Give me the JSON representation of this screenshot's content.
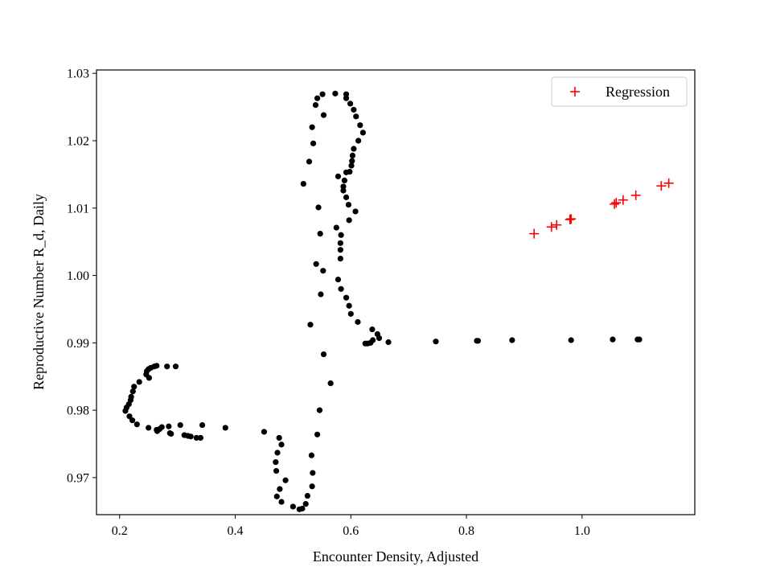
{
  "chart_data": {
    "type": "scatter",
    "xlabel": "Encounter Density, Adjusted",
    "ylabel": "Reproductive Number R_d, Daily",
    "xlim": [
      0.16,
      1.195
    ],
    "ylim": [
      0.9645,
      1.0305
    ],
    "xticks": [
      0.2,
      0.4,
      0.6,
      0.8,
      1.0
    ],
    "xtick_labels": [
      "0.2",
      "0.4",
      "0.6",
      "0.8",
      "1.0"
    ],
    "yticks": [
      0.97,
      0.98,
      0.99,
      1.0,
      1.01,
      1.02,
      1.03
    ],
    "ytick_labels": [
      "0.97",
      "0.98",
      "0.99",
      "1.00",
      "1.01",
      "1.02",
      "1.03"
    ],
    "grid": false,
    "legend": {
      "placement": "top-right",
      "entries": [
        "Regression"
      ]
    },
    "series": [
      {
        "marker": "dot",
        "color": "#000000",
        "points": [
          [
            0.516,
            0.9654
          ],
          [
            0.511,
            0.9653
          ],
          [
            0.5,
            0.9657
          ],
          [
            0.48,
            0.9664
          ],
          [
            0.472,
            0.9672
          ],
          [
            0.477,
            0.9683
          ],
          [
            0.487,
            0.9696
          ],
          [
            0.471,
            0.971
          ],
          [
            0.47,
            0.9723
          ],
          [
            0.473,
            0.9737
          ],
          [
            0.48,
            0.9749
          ],
          [
            0.476,
            0.9759
          ],
          [
            0.45,
            0.9768
          ],
          [
            0.522,
            0.9661
          ],
          [
            0.525,
            0.9673
          ],
          [
            0.533,
            0.9687
          ],
          [
            0.534,
            0.9707
          ],
          [
            0.532,
            0.9733
          ],
          [
            0.542,
            0.9764
          ],
          [
            0.546,
            0.98
          ],
          [
            0.565,
            0.984
          ],
          [
            0.553,
            0.9883
          ],
          [
            0.53,
            0.9927
          ],
          [
            0.548,
            0.9972
          ],
          [
            0.552,
            1.0007
          ],
          [
            0.54,
            1.0017
          ],
          [
            0.547,
            1.0062
          ],
          [
            0.544,
            1.0101
          ],
          [
            0.518,
            1.0136
          ],
          [
            0.528,
            1.0169
          ],
          [
            0.535,
            1.0196
          ],
          [
            0.533,
            1.022
          ],
          [
            0.553,
            1.0238
          ],
          [
            0.539,
            1.0253
          ],
          [
            0.542,
            1.0263
          ],
          [
            0.551,
            1.0269
          ],
          [
            0.573,
            1.027
          ],
          [
            0.592,
            1.0269
          ],
          [
            0.592,
            1.0263
          ],
          [
            0.599,
            1.0255
          ],
          [
            0.605,
            1.0246
          ],
          [
            0.609,
            1.0236
          ],
          [
            0.616,
            1.0223
          ],
          [
            0.621,
            1.0212
          ],
          [
            0.613,
            1.02
          ],
          [
            0.605,
            1.0188
          ],
          [
            0.603,
            1.0178
          ],
          [
            0.602,
            1.017
          ],
          [
            0.601,
            1.0163
          ],
          [
            0.598,
            1.0154
          ],
          [
            0.592,
            1.0153
          ],
          [
            0.578,
            1.0147
          ],
          [
            0.589,
            1.0141
          ],
          [
            0.587,
            1.0132
          ],
          [
            0.587,
            1.0126
          ],
          [
            0.592,
            1.0116
          ],
          [
            0.596,
            1.0105
          ],
          [
            0.608,
            1.0095
          ],
          [
            0.597,
            1.0082
          ],
          [
            0.575,
            1.0071
          ],
          [
            0.583,
            1.006
          ],
          [
            0.582,
            1.0048
          ],
          [
            0.582,
            1.0038
          ],
          [
            0.582,
            1.0025
          ],
          [
            0.578,
            0.9994
          ],
          [
            0.583,
            0.998
          ],
          [
            0.592,
            0.9967
          ],
          [
            0.597,
            0.9955
          ],
          [
            0.6,
            0.9943
          ],
          [
            0.612,
            0.9931
          ],
          [
            0.637,
            0.992
          ],
          [
            0.646,
            0.9913
          ],
          [
            0.649,
            0.9907
          ],
          [
            0.638,
            0.9904
          ],
          [
            0.634,
            0.99
          ],
          [
            0.629,
            0.9899
          ],
          [
            0.625,
            0.9899
          ],
          [
            0.665,
            0.9901
          ],
          [
            0.747,
            0.9902
          ],
          [
            0.818,
            0.9903
          ],
          [
            0.82,
            0.9903
          ],
          [
            0.879,
            0.9904
          ],
          [
            0.981,
            0.9904
          ],
          [
            1.053,
            0.9905
          ],
          [
            1.096,
            0.9905
          ],
          [
            1.099,
            0.9905
          ],
          [
            0.297,
            0.9865
          ],
          [
            0.282,
            0.9865
          ],
          [
            0.264,
            0.9866
          ],
          [
            0.26,
            0.9865
          ],
          [
            0.254,
            0.9863
          ],
          [
            0.25,
            0.9861
          ],
          [
            0.247,
            0.9858
          ],
          [
            0.246,
            0.9853
          ],
          [
            0.251,
            0.9848
          ],
          [
            0.234,
            0.9842
          ],
          [
            0.225,
            0.9835
          ],
          [
            0.223,
            0.9828
          ],
          [
            0.22,
            0.982
          ],
          [
            0.219,
            0.9815
          ],
          [
            0.216,
            0.9809
          ],
          [
            0.212,
            0.9804
          ],
          [
            0.21,
            0.9799
          ],
          [
            0.217,
            0.9791
          ],
          [
            0.222,
            0.9785
          ],
          [
            0.23,
            0.9779
          ],
          [
            0.25,
            0.9774
          ],
          [
            0.264,
            0.9771
          ],
          [
            0.265,
            0.9769
          ],
          [
            0.269,
            0.9772
          ],
          [
            0.273,
            0.9775
          ],
          [
            0.285,
            0.9776
          ],
          [
            0.305,
            0.9778
          ],
          [
            0.343,
            0.9778
          ],
          [
            0.383,
            0.9774
          ],
          [
            0.287,
            0.9766
          ],
          [
            0.289,
            0.9765
          ],
          [
            0.312,
            0.9763
          ],
          [
            0.318,
            0.9762
          ],
          [
            0.323,
            0.9761
          ],
          [
            0.333,
            0.9759
          ],
          [
            0.34,
            0.9759
          ]
        ]
      },
      {
        "name": "Regression",
        "marker": "plus",
        "color": "#ff0000",
        "points": [
          [
            0.917,
            1.0062
          ],
          [
            0.947,
            1.0072
          ],
          [
            0.956,
            1.0075
          ],
          [
            0.979,
            1.0083
          ],
          [
            0.981,
            1.0084
          ],
          [
            1.056,
            1.0106
          ],
          [
            1.059,
            1.0108
          ],
          [
            1.071,
            1.0112
          ],
          [
            1.093,
            1.0119
          ],
          [
            1.137,
            1.0133
          ],
          [
            1.15,
            1.0137
          ]
        ]
      }
    ]
  }
}
